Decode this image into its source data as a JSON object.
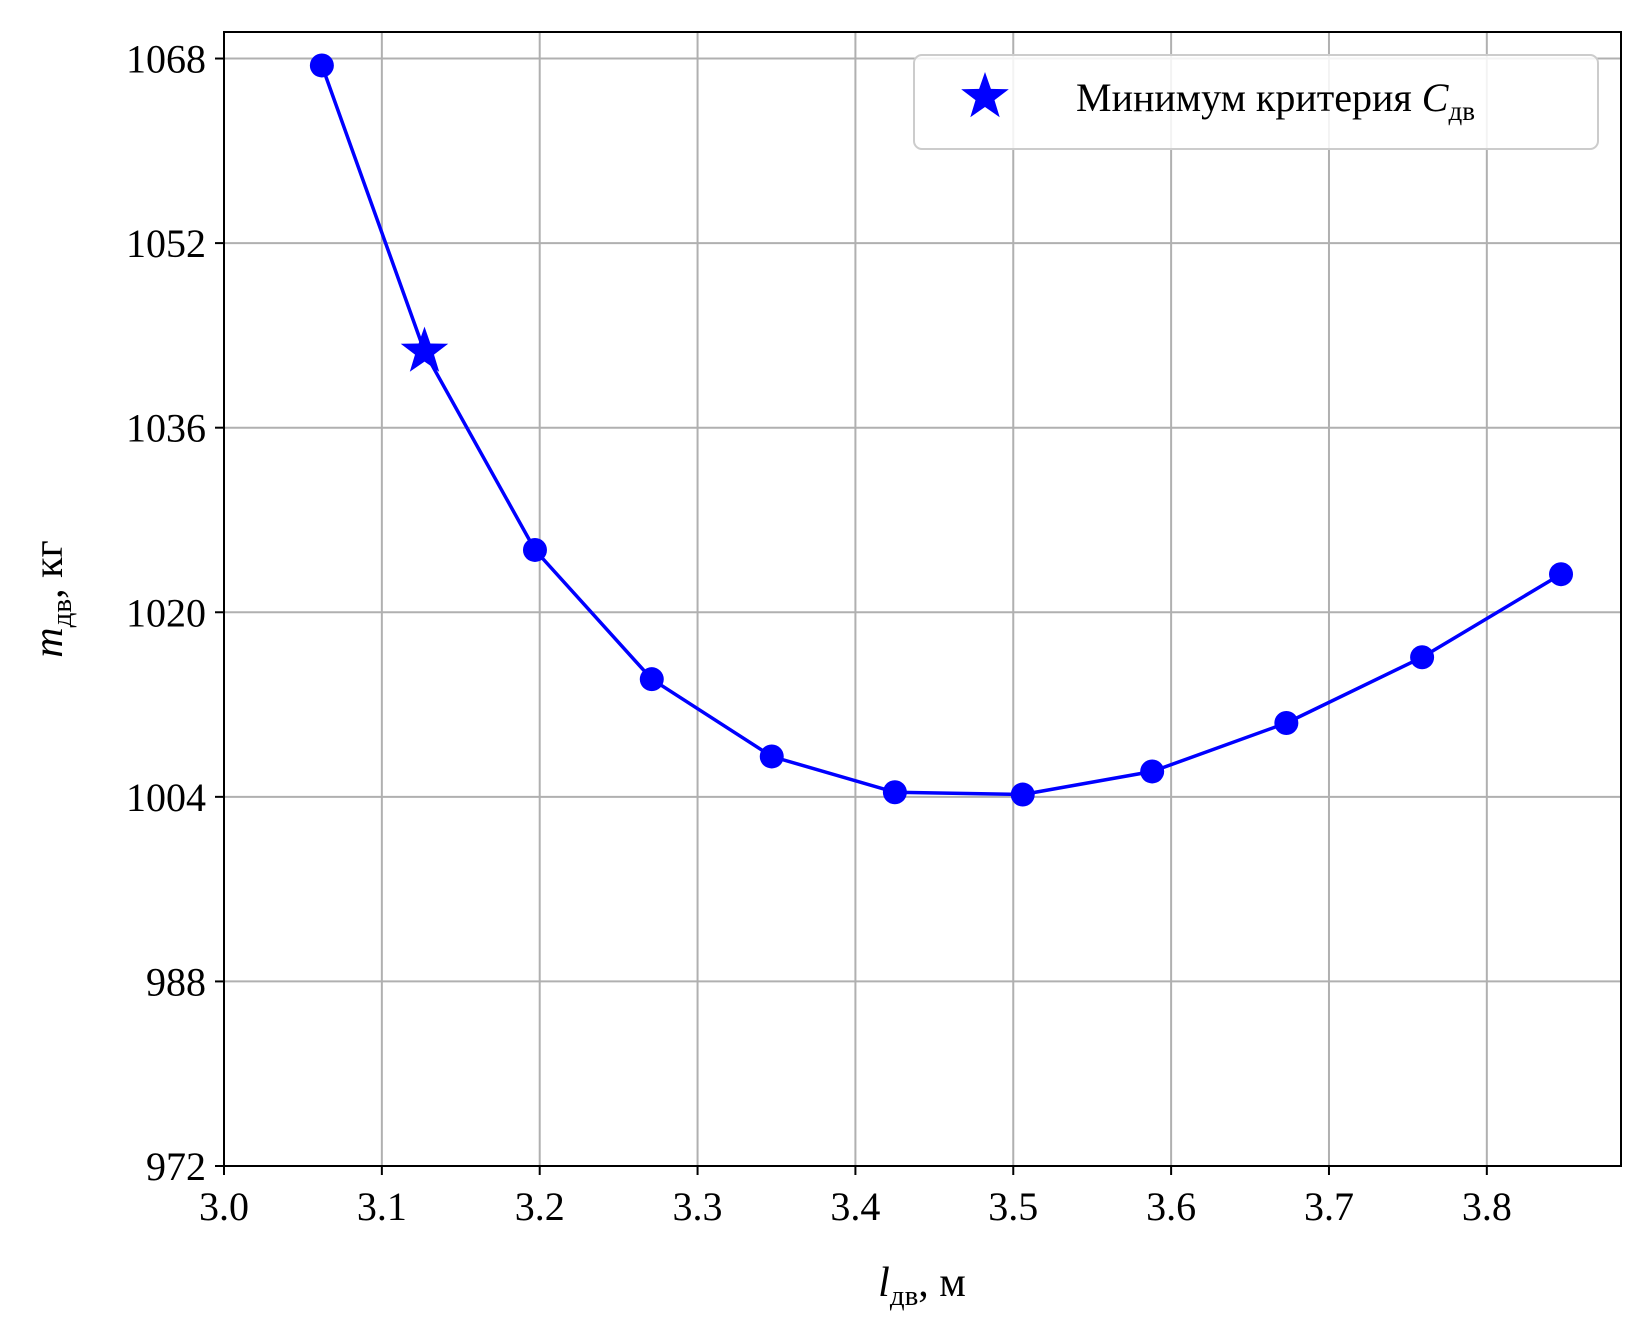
{
  "chart_data": {
    "type": "line",
    "title": "",
    "xlabel": {
      "main": "l",
      "sub": "дв",
      "unit": ",  м"
    },
    "ylabel": {
      "main": "m",
      "sub": "дв",
      "unit": ",  кг"
    },
    "xlim": [
      3.0,
      3.885
    ],
    "ylim": [
      972,
      1070.3
    ],
    "xticks": [
      3.0,
      3.1,
      3.2,
      3.3,
      3.4,
      3.5,
      3.6,
      3.7,
      3.8
    ],
    "xtick_labels": [
      "3.0",
      "3.1",
      "3.2",
      "3.3",
      "3.4",
      "3.5",
      "3.6",
      "3.7",
      "3.8"
    ],
    "yticks": [
      972,
      988,
      1004,
      1020,
      1036,
      1052,
      1068
    ],
    "ytick_labels": [
      "972",
      "988",
      "1004",
      "1020",
      "1036",
      "1052",
      "1068"
    ],
    "grid": true,
    "series": [
      {
        "x": [
          3.062,
          3.127,
          3.197,
          3.271,
          3.347,
          3.425,
          3.506,
          3.588,
          3.673,
          3.759,
          3.847
        ],
        "y": [
          1067.4,
          1042.6,
          1025.4,
          1014.2,
          1007.5,
          1004.4,
          1004.2,
          1006.2,
          1010.4,
          1016.1,
          1023.3
        ],
        "color": "#0000ff",
        "markers": [
          true,
          false,
          true,
          true,
          true,
          true,
          true,
          true,
          true,
          true,
          true
        ]
      }
    ],
    "highlight": {
      "x": 3.127,
      "y": 1042.6,
      "marker": "star",
      "color": "#0000ff",
      "legend": {
        "main": "Минимум критерия ",
        "var": "C",
        "sub": "дв"
      }
    },
    "legend_position": "top-right"
  }
}
